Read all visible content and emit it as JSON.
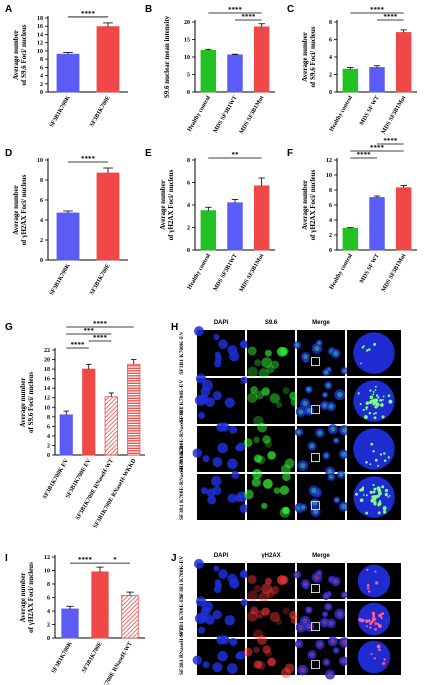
{
  "colors": {
    "blue": "#5b5bf5",
    "red": "#f04848",
    "green": "#22c022",
    "black": "#000000"
  },
  "panels": {
    "A": {
      "label": "A",
      "ylabel": "Average number of S9.6 Foci/ nucleus",
      "sig": "****",
      "chart_data": {
        "type": "bar",
        "categories": [
          "SF3B1K700K",
          "SF3B1K700E"
        ],
        "values": [
          9.2,
          15.9
        ],
        "errors": [
          0.4,
          0.9
        ],
        "ylim": [
          0,
          18
        ],
        "ticks": [
          0,
          2,
          4,
          6,
          8,
          10,
          12,
          14,
          16,
          18
        ],
        "colors": [
          "blue",
          "red"
        ]
      }
    },
    "B": {
      "label": "B",
      "ylabel": "S9.6 nuclear mean intensity",
      "sig": [
        "****",
        "****"
      ],
      "chart_data": {
        "type": "bar",
        "categories": [
          "Healthy control",
          "MDS SF3B1WT",
          "MDS SF3B1Mut"
        ],
        "values": [
          11.9,
          10.6,
          18.6
        ],
        "errors": [
          0.3,
          0.2,
          0.9
        ],
        "ylim": [
          0,
          20
        ],
        "ticks": [
          0,
          5,
          10,
          15,
          20
        ],
        "colors": [
          "green",
          "blue",
          "red"
        ]
      }
    },
    "C": {
      "label": "C",
      "ylabel": "Average number of S9.6 Foci/ nucleus",
      "sig": [
        "****",
        "****"
      ],
      "chart_data": {
        "type": "bar",
        "categories": [
          "Healthy control",
          "MDS SF WT",
          "MDS SF3B1Mut"
        ],
        "values": [
          2.6,
          2.8,
          6.8
        ],
        "errors": [
          0.2,
          0.2,
          0.3
        ],
        "ylim": [
          0,
          8
        ],
        "ticks": [
          0,
          2,
          4,
          6,
          8
        ],
        "colors": [
          "green",
          "blue",
          "red"
        ]
      }
    },
    "D": {
      "label": "D",
      "ylabel": "Average number of γH2AX Foci/ nucleus",
      "sig": "****",
      "chart_data": {
        "type": "bar",
        "categories": [
          "SF3B1K700K",
          "SF3B1K700E"
        ],
        "values": [
          4.7,
          8.7
        ],
        "errors": [
          0.2,
          0.5
        ],
        "ylim": [
          0,
          10
        ],
        "ticks": [
          0,
          2,
          4,
          6,
          8,
          10
        ],
        "colors": [
          "blue",
          "red"
        ]
      }
    },
    "E": {
      "label": "E",
      "ylabel": "Average number of γH2AX Foci/ nucleus",
      "sig": "**",
      "chart_data": {
        "type": "bar",
        "categories": [
          "Healthy control",
          "MDS SF3B1WT",
          "MDS SF3B1Mut"
        ],
        "values": [
          3.5,
          4.2,
          5.7
        ],
        "errors": [
          0.3,
          0.3,
          0.7
        ],
        "ylim": [
          0,
          8
        ],
        "ticks": [
          0,
          2,
          4,
          6,
          8
        ],
        "colors": [
          "green",
          "blue",
          "red"
        ]
      }
    },
    "F": {
      "label": "F",
      "ylabel": "Average number of γH2AX Foci/ nucleus",
      "sig": [
        "****",
        "****",
        "****"
      ],
      "chart_data": {
        "type": "bar",
        "categories": [
          "Healthy control",
          "MDS SF WT",
          "MDS SF3B1Mut"
        ],
        "values": [
          2.9,
          7.0,
          8.3
        ],
        "errors": [
          0.1,
          0.2,
          0.3
        ],
        "ylim": [
          0,
          12
        ],
        "ticks": [
          0,
          2,
          4,
          6,
          8,
          10,
          12
        ],
        "colors": [
          "green",
          "blue",
          "red"
        ]
      }
    },
    "G": {
      "label": "G",
      "ylabel": "Average number of S9.6 Foci/ nucleus",
      "sig": [
        "****",
        "****",
        "***",
        "****"
      ],
      "chart_data": {
        "type": "bar",
        "categories": [
          "SF3B1K700K EV",
          "SF3B1K700E EV",
          "SF3B1K700E RNaseH-WT",
          "SF3B1K700E RNaseH-WKKD"
        ],
        "values": [
          8.4,
          18.0,
          12.2,
          19.0
        ],
        "errors": [
          0.8,
          1.0,
          0.8,
          1.0
        ],
        "ylim": [
          0,
          22
        ],
        "ticks": [
          0,
          2,
          4,
          6,
          8,
          10,
          12,
          14,
          16,
          18,
          20,
          22
        ],
        "colors": [
          "blue",
          "red",
          "red",
          "red"
        ],
        "patterns": [
          "solid",
          "solid",
          "diag",
          "horiz"
        ]
      }
    },
    "I": {
      "label": "I",
      "ylabel": "Average number of γH2AX Foci/ nucleus",
      "sig": [
        "****",
        "*"
      ],
      "chart_data": {
        "type": "bar",
        "categories": [
          "SF3B1K700K",
          "SF3B1K700E",
          "SF3B1K700E RNaseH-WT"
        ],
        "values": [
          4.3,
          9.8,
          6.3
        ],
        "errors": [
          0.4,
          0.7,
          0.5
        ],
        "ylim": [
          0,
          12
        ],
        "ticks": [
          0,
          2,
          4,
          6,
          8,
          10,
          12
        ],
        "colors": [
          "blue",
          "red",
          "red"
        ],
        "patterns": [
          "solid",
          "solid",
          "diag"
        ]
      }
    },
    "H": {
      "label": "H",
      "headers": [
        "DAPI",
        "S9.6",
        "Merge"
      ],
      "rows": [
        "SF3B1 K700K-EV",
        "SF3B1 K700E-EV",
        "SF3B1 K700E-RNaseH-WT",
        "SF3B1 K700E-RNaseH-WKKD"
      ]
    },
    "J": {
      "label": "J",
      "headers": [
        "DAPI",
        "γH2AX",
        "Merge"
      ],
      "rows": [
        "SF3B1 K700K-EV",
        "SF3B1 K700E-EV",
        "SF3B1 RNaseH-WT"
      ]
    }
  }
}
